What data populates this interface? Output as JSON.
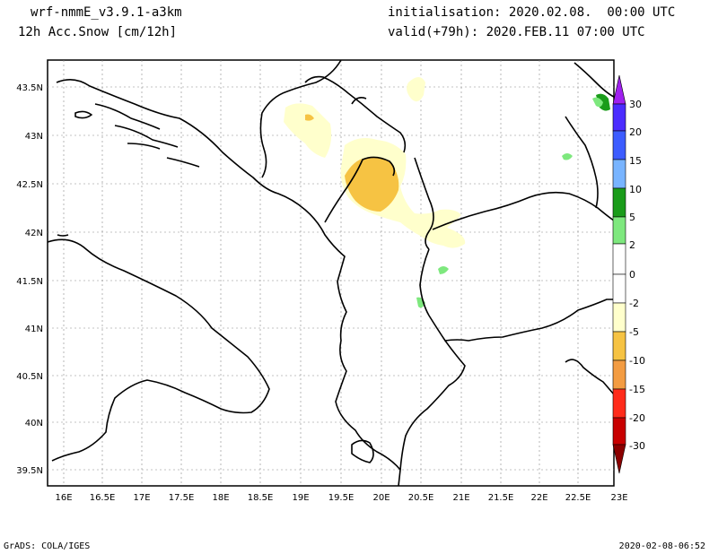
{
  "header": {
    "model": "wrf-nmmE_v3.9.1-a3km",
    "field": "12h Acc.Snow [cm/12h]",
    "init": "initialisation: 2020.02.08.  00:00 UTC",
    "valid": "valid(+79h): 2020.FEB.11 07:00 UTC"
  },
  "footer": {
    "credit": "GrADS: COLA/IGES",
    "timestamp": "2020-02-08-06:52"
  },
  "map": {
    "lon_ticks": [
      "16E",
      "16.5E",
      "17E",
      "17.5E",
      "18E",
      "18.5E",
      "19E",
      "19.5E",
      "20E",
      "20.5E",
      "21E",
      "21.5E",
      "22E",
      "22.5E",
      "23E"
    ],
    "lat_ticks": [
      "43.5N",
      "43N",
      "42.5N",
      "42N",
      "41.5N",
      "41N",
      "40.5N",
      "40N",
      "39.5N"
    ]
  },
  "colorbar": {
    "labels": [
      "30",
      "20",
      "15",
      "10",
      "5",
      "2",
      "0",
      "-2",
      "-5",
      "-10",
      "-15",
      "-20",
      "-30"
    ],
    "colors": {
      "top_arrow": "#a020f0",
      "c30": "#4b2cff",
      "c20": "#3c5cff",
      "c15": "#78b4ff",
      "c10": "#1a9c1a",
      "c5": "#7ee87e",
      "c2": "#ffffff",
      "c_2": "#ffffcc",
      "c_5": "#f6c343",
      "c_10": "#f39c42",
      "c_15": "#ff2b1a",
      "c_20": "#c80000",
      "c_30": "#8b0000"
    }
  }
}
